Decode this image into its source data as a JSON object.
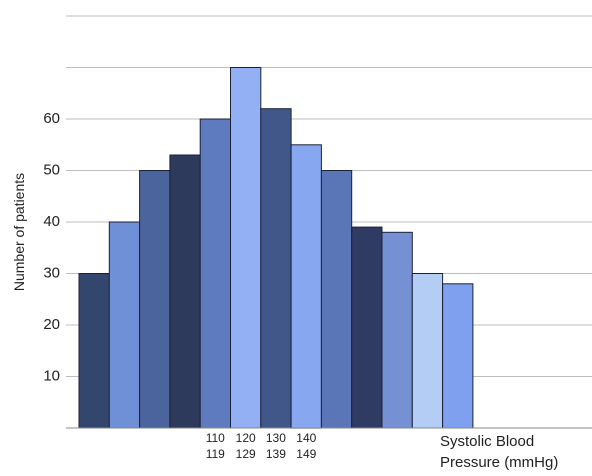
{
  "chart_data": {
    "type": "bar",
    "title": "",
    "ylabel": "Number of patients",
    "xlabel": "Systolic Blood Pressure (mmHg)",
    "xlabel_lines": [
      "Systolic Blood",
      "Pressure (mmHg)"
    ],
    "ylim": [
      0,
      80
    ],
    "yticks": [
      10,
      20,
      30,
      40,
      50,
      60
    ],
    "grid": true,
    "x_tick_labels": [
      {
        "top": "110",
        "bottom": "119"
      },
      {
        "top": "120",
        "bottom": "129"
      },
      {
        "top": "130",
        "bottom": "139"
      },
      {
        "top": "140",
        "bottom": "149"
      }
    ],
    "values": [
      30,
      40,
      50,
      53,
      60,
      70,
      62,
      55,
      50,
      39,
      38,
      30,
      28
    ],
    "colors": [
      "#33466e",
      "#6f8fd6",
      "#4b649d",
      "#2e3a5c",
      "#5f7bbf",
      "#93b0f5",
      "#41578a",
      "#87a8f0",
      "#5b76b6",
      "#2f3b63",
      "#7690d4",
      "#b4cdf5",
      "#7fa0ee"
    ]
  }
}
